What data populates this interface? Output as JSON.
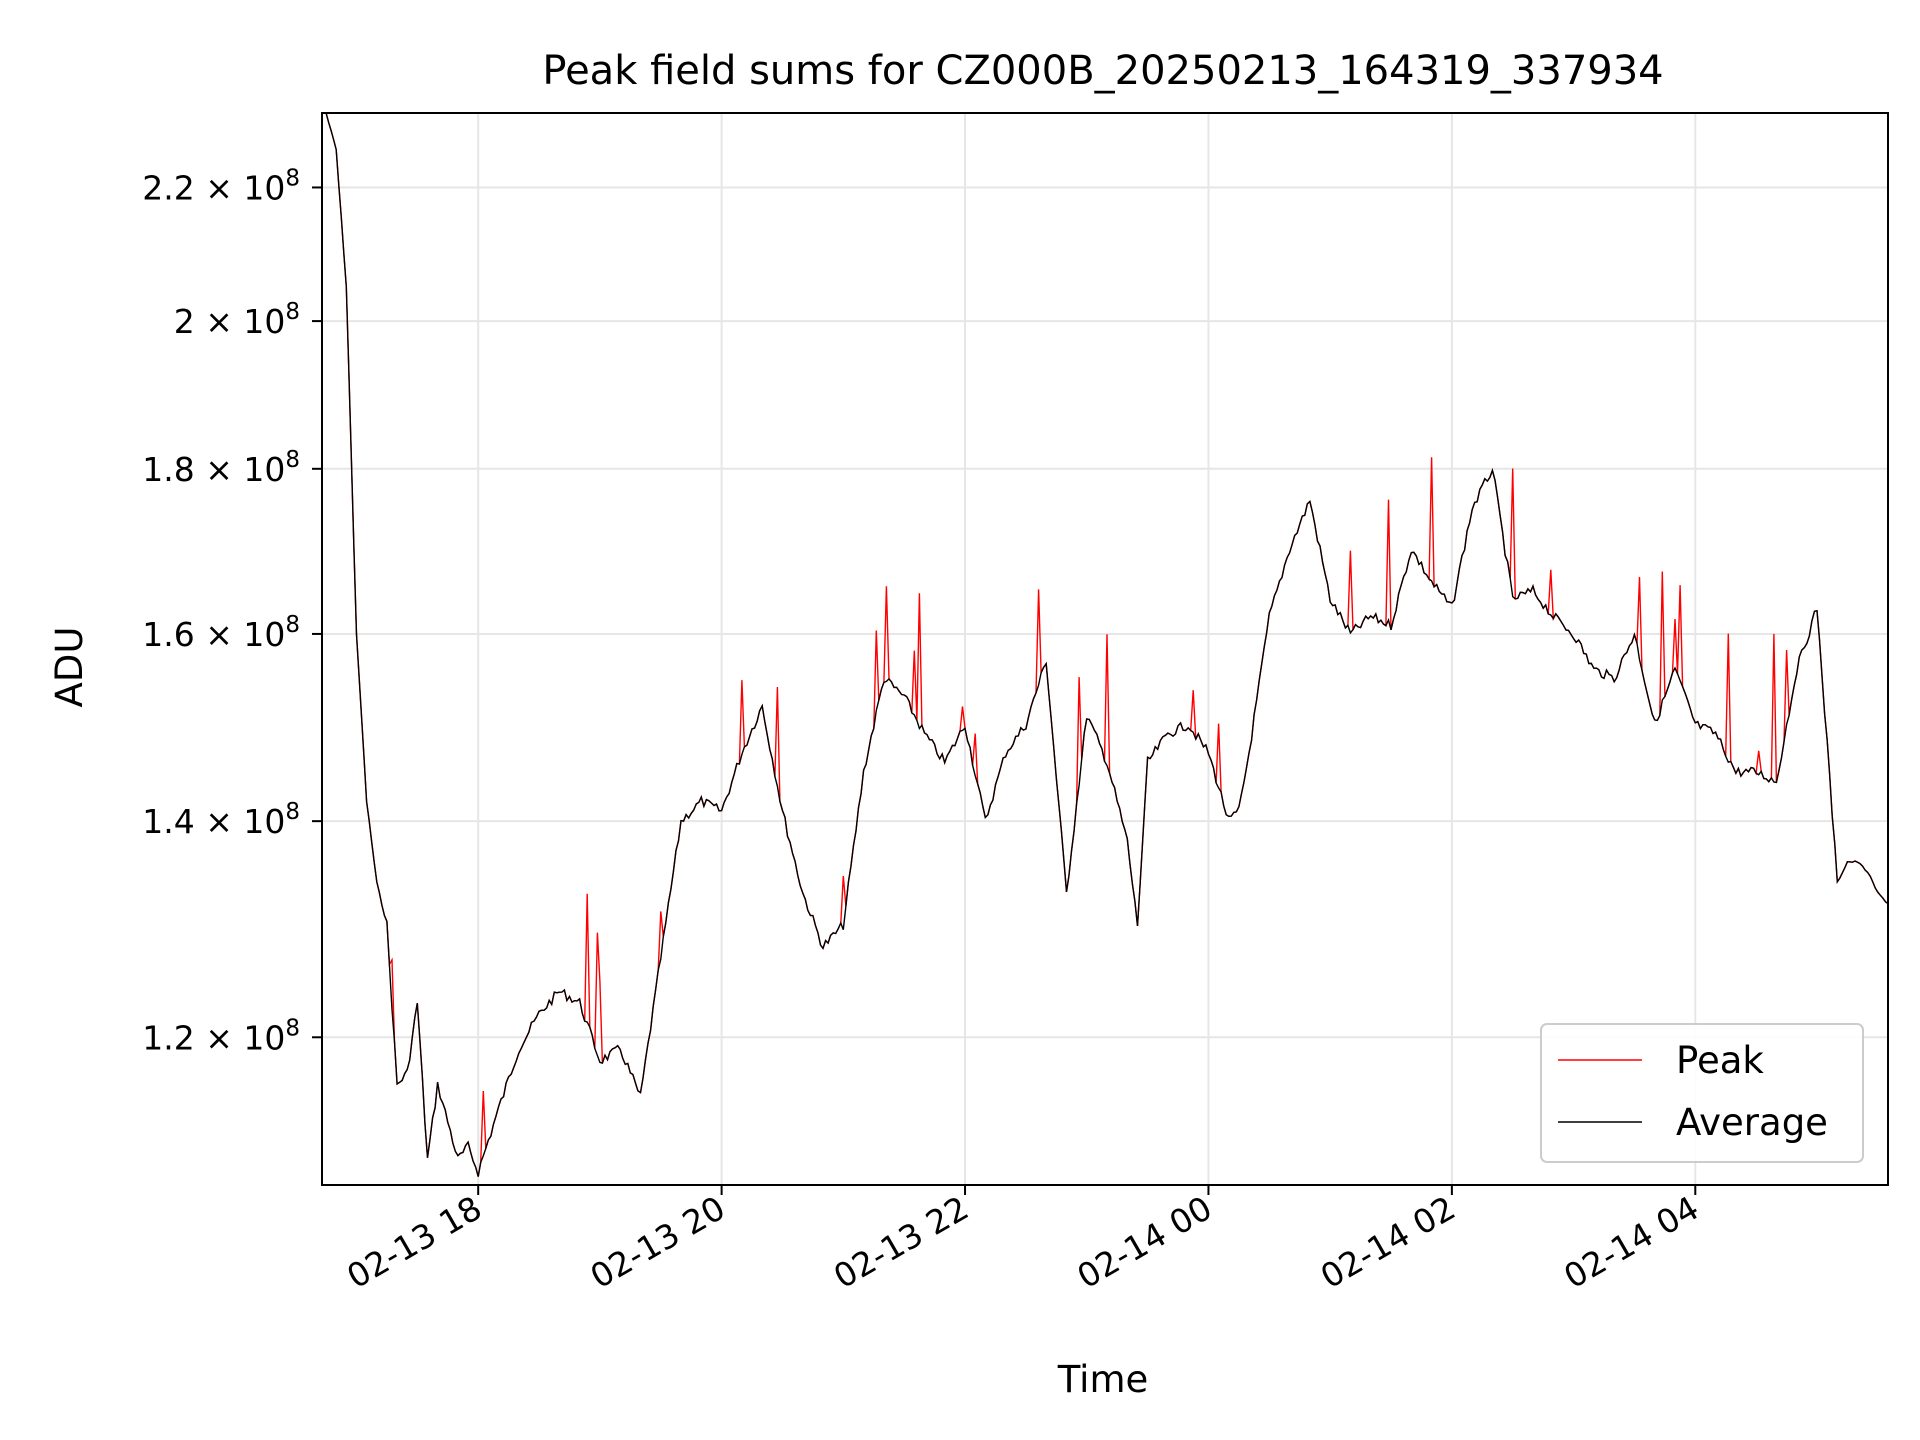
{
  "chart_data": {
    "type": "line",
    "title": "Peak field sums for CZ000B_20250213_164319_337934",
    "xlabel": "Time",
    "ylabel": "ADU",
    "x_range": [
      "2025-02-13T16:43",
      "2025-02-14T05:35"
    ],
    "y_range": [
      108000000,
      232000000
    ],
    "y_scale": "log",
    "grid": true,
    "legend_position": "lower-right",
    "x_ticks": [
      {
        "label": "02-13 18",
        "value": "2025-02-13T18:00"
      },
      {
        "label": "02-13 20",
        "value": "2025-02-13T20:00"
      },
      {
        "label": "02-13 22",
        "value": "2025-02-13T22:00"
      },
      {
        "label": "02-14 00",
        "value": "2025-02-14T00:00"
      },
      {
        "label": "02-14 02",
        "value": "2025-02-14T02:00"
      },
      {
        "label": "02-14 04",
        "value": "2025-02-14T04:00"
      }
    ],
    "y_ticks": [
      {
        "mant": "1.2",
        "exp": "8",
        "value": 120000000
      },
      {
        "mant": "1.4",
        "exp": "8",
        "value": 140000000
      },
      {
        "mant": "1.6",
        "exp": "8",
        "value": 160000000
      },
      {
        "mant": "1.8",
        "exp": "8",
        "value": 180000000
      },
      {
        "mant": "2",
        "exp": "8",
        "value": 200000000
      },
      {
        "mant": "2.2",
        "exp": "8",
        "value": 220000000
      }
    ],
    "series": [
      {
        "name": "Average",
        "color": "#000000",
        "x": [
          "2025-02-13T16:45",
          "2025-02-13T16:50",
          "2025-02-13T16:55",
          "2025-02-13T17:00",
          "2025-02-13T17:05",
          "2025-02-13T17:10",
          "2025-02-13T17:15",
          "2025-02-13T17:20",
          "2025-02-13T17:25",
          "2025-02-13T17:30",
          "2025-02-13T17:35",
          "2025-02-13T17:40",
          "2025-02-13T17:45",
          "2025-02-13T17:50",
          "2025-02-13T17:55",
          "2025-02-13T18:00",
          "2025-02-13T18:10",
          "2025-02-13T18:20",
          "2025-02-13T18:30",
          "2025-02-13T18:40",
          "2025-02-13T18:50",
          "2025-02-13T19:00",
          "2025-02-13T19:10",
          "2025-02-13T19:20",
          "2025-02-13T19:30",
          "2025-02-13T19:40",
          "2025-02-13T19:50",
          "2025-02-13T20:00",
          "2025-02-13T20:10",
          "2025-02-13T20:20",
          "2025-02-13T20:30",
          "2025-02-13T20:40",
          "2025-02-13T20:50",
          "2025-02-13T21:00",
          "2025-02-13T21:10",
          "2025-02-13T21:20",
          "2025-02-13T21:30",
          "2025-02-13T21:40",
          "2025-02-13T21:50",
          "2025-02-13T22:00",
          "2025-02-13T22:10",
          "2025-02-13T22:20",
          "2025-02-13T22:30",
          "2025-02-13T22:40",
          "2025-02-13T22:50",
          "2025-02-13T23:00",
          "2025-02-13T23:10",
          "2025-02-13T23:20",
          "2025-02-13T23:25",
          "2025-02-13T23:30",
          "2025-02-13T23:40",
          "2025-02-13T23:50",
          "2025-02-14T00:00",
          "2025-02-14T00:10",
          "2025-02-14T00:15",
          "2025-02-14T00:20",
          "2025-02-14T00:30",
          "2025-02-14T00:40",
          "2025-02-14T00:50",
          "2025-02-14T01:00",
          "2025-02-14T01:10",
          "2025-02-14T01:20",
          "2025-02-14T01:30",
          "2025-02-14T01:40",
          "2025-02-14T01:50",
          "2025-02-14T02:00",
          "2025-02-14T02:10",
          "2025-02-14T02:20",
          "2025-02-14T02:30",
          "2025-02-14T02:40",
          "2025-02-14T02:50",
          "2025-02-14T03:00",
          "2025-02-14T03:10",
          "2025-02-14T03:20",
          "2025-02-14T03:30",
          "2025-02-14T03:40",
          "2025-02-14T03:50",
          "2025-02-14T04:00",
          "2025-02-14T04:10",
          "2025-02-14T04:20",
          "2025-02-14T04:30",
          "2025-02-14T04:40",
          "2025-02-14T04:50",
          "2025-02-14T05:00",
          "2025-02-14T05:05",
          "2025-02-14T05:10",
          "2025-02-14T05:15",
          "2025-02-14T05:20",
          "2025-02-14T05:25",
          "2025-02-14T05:30",
          "2025-02-14T05:35"
        ],
        "y": [
          232000000,
          226000000,
          205000000,
          160000000,
          142000000,
          134000000,
          130000000,
          116000000,
          117000000,
          123000000,
          110000000,
          116000000,
          113000000,
          110000000,
          111000000,
          109000000,
          114000000,
          119000000,
          122000000,
          124000000,
          123000000,
          118000000,
          119000000,
          115000000,
          127000000,
          140000000,
          142000000,
          141000000,
          147000000,
          152000000,
          141000000,
          133000000,
          128000000,
          130000000,
          145000000,
          155000000,
          153000000,
          149000000,
          146000000,
          150000000,
          140000000,
          147000000,
          150000000,
          157000000,
          133000000,
          151000000,
          146000000,
          138000000,
          130000000,
          146000000,
          149000000,
          150000000,
          147000000,
          140000000,
          141000000,
          147000000,
          162000000,
          170000000,
          176000000,
          164000000,
          160000000,
          162000000,
          161000000,
          170000000,
          166000000,
          163000000,
          175000000,
          180000000,
          164000000,
          165000000,
          162000000,
          160000000,
          156000000,
          155000000,
          160000000,
          150000000,
          156000000,
          150000000,
          149000000,
          145000000,
          145000000,
          144000000,
          156000000,
          163000000,
          148000000,
          134000000,
          136000000,
          136000000,
          135000000,
          133000000,
          132000000
        ]
      },
      {
        "name": "Peak",
        "color": "#ff0000"
      }
    ]
  }
}
